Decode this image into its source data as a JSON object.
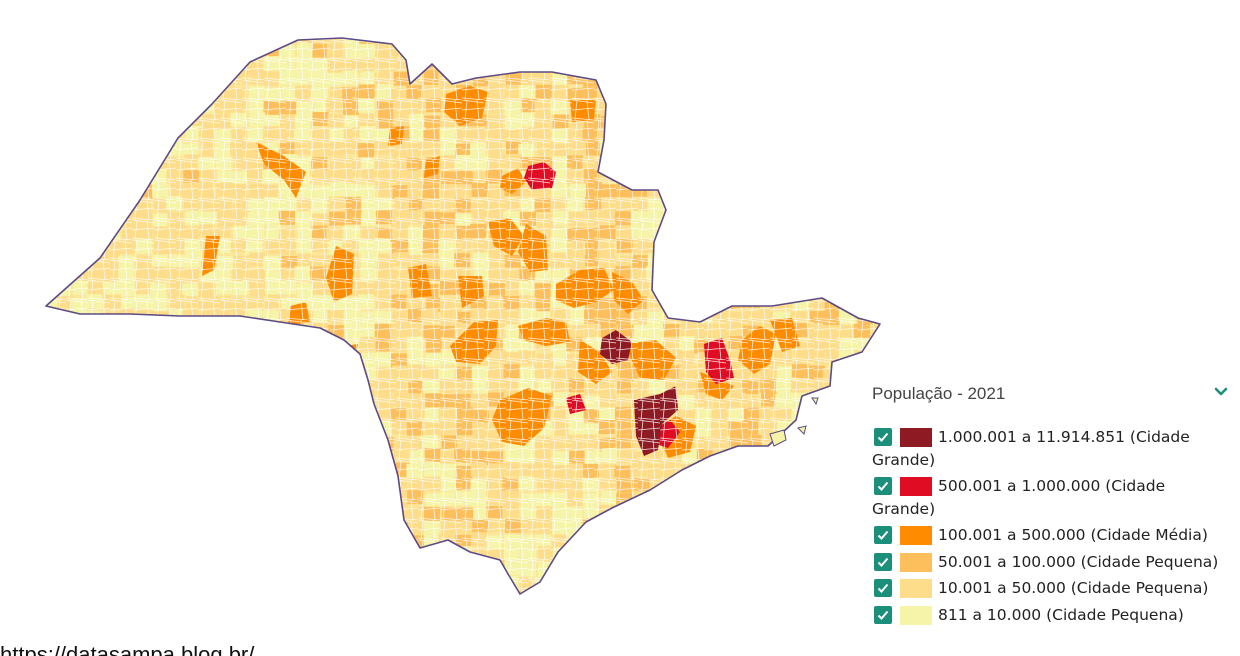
{
  "legend": {
    "title": "População - 2021",
    "items": [
      {
        "label": "1.000.001 a 11.914.851 (Cidade Grande)",
        "color": "#8e1b24",
        "checked": true
      },
      {
        "label": "500.001 a 1.000.000 (Cidade Grande)",
        "color": "#e00c23",
        "checked": true
      },
      {
        "label": "100.001 a 500.000 (Cidade Média)",
        "color": "#ff8c00",
        "checked": true
      },
      {
        "label": "50.001 a 100.000 (Cidade Pequena)",
        "color": "#fdbf5c",
        "checked": true
      },
      {
        "label": "10.001 a 50.000 (Cidade Pequena)",
        "color": "#fedd8a",
        "checked": true
      },
      {
        "label": "811 a 10.000 (Cidade Pequena)",
        "color": "#f5f4a8",
        "checked": true
      }
    ]
  },
  "colors": {
    "border": "#5b4b86",
    "checkbox": "#1c8f7a"
  },
  "footer": {
    "url": "https://datasampa.blog.br/..."
  }
}
